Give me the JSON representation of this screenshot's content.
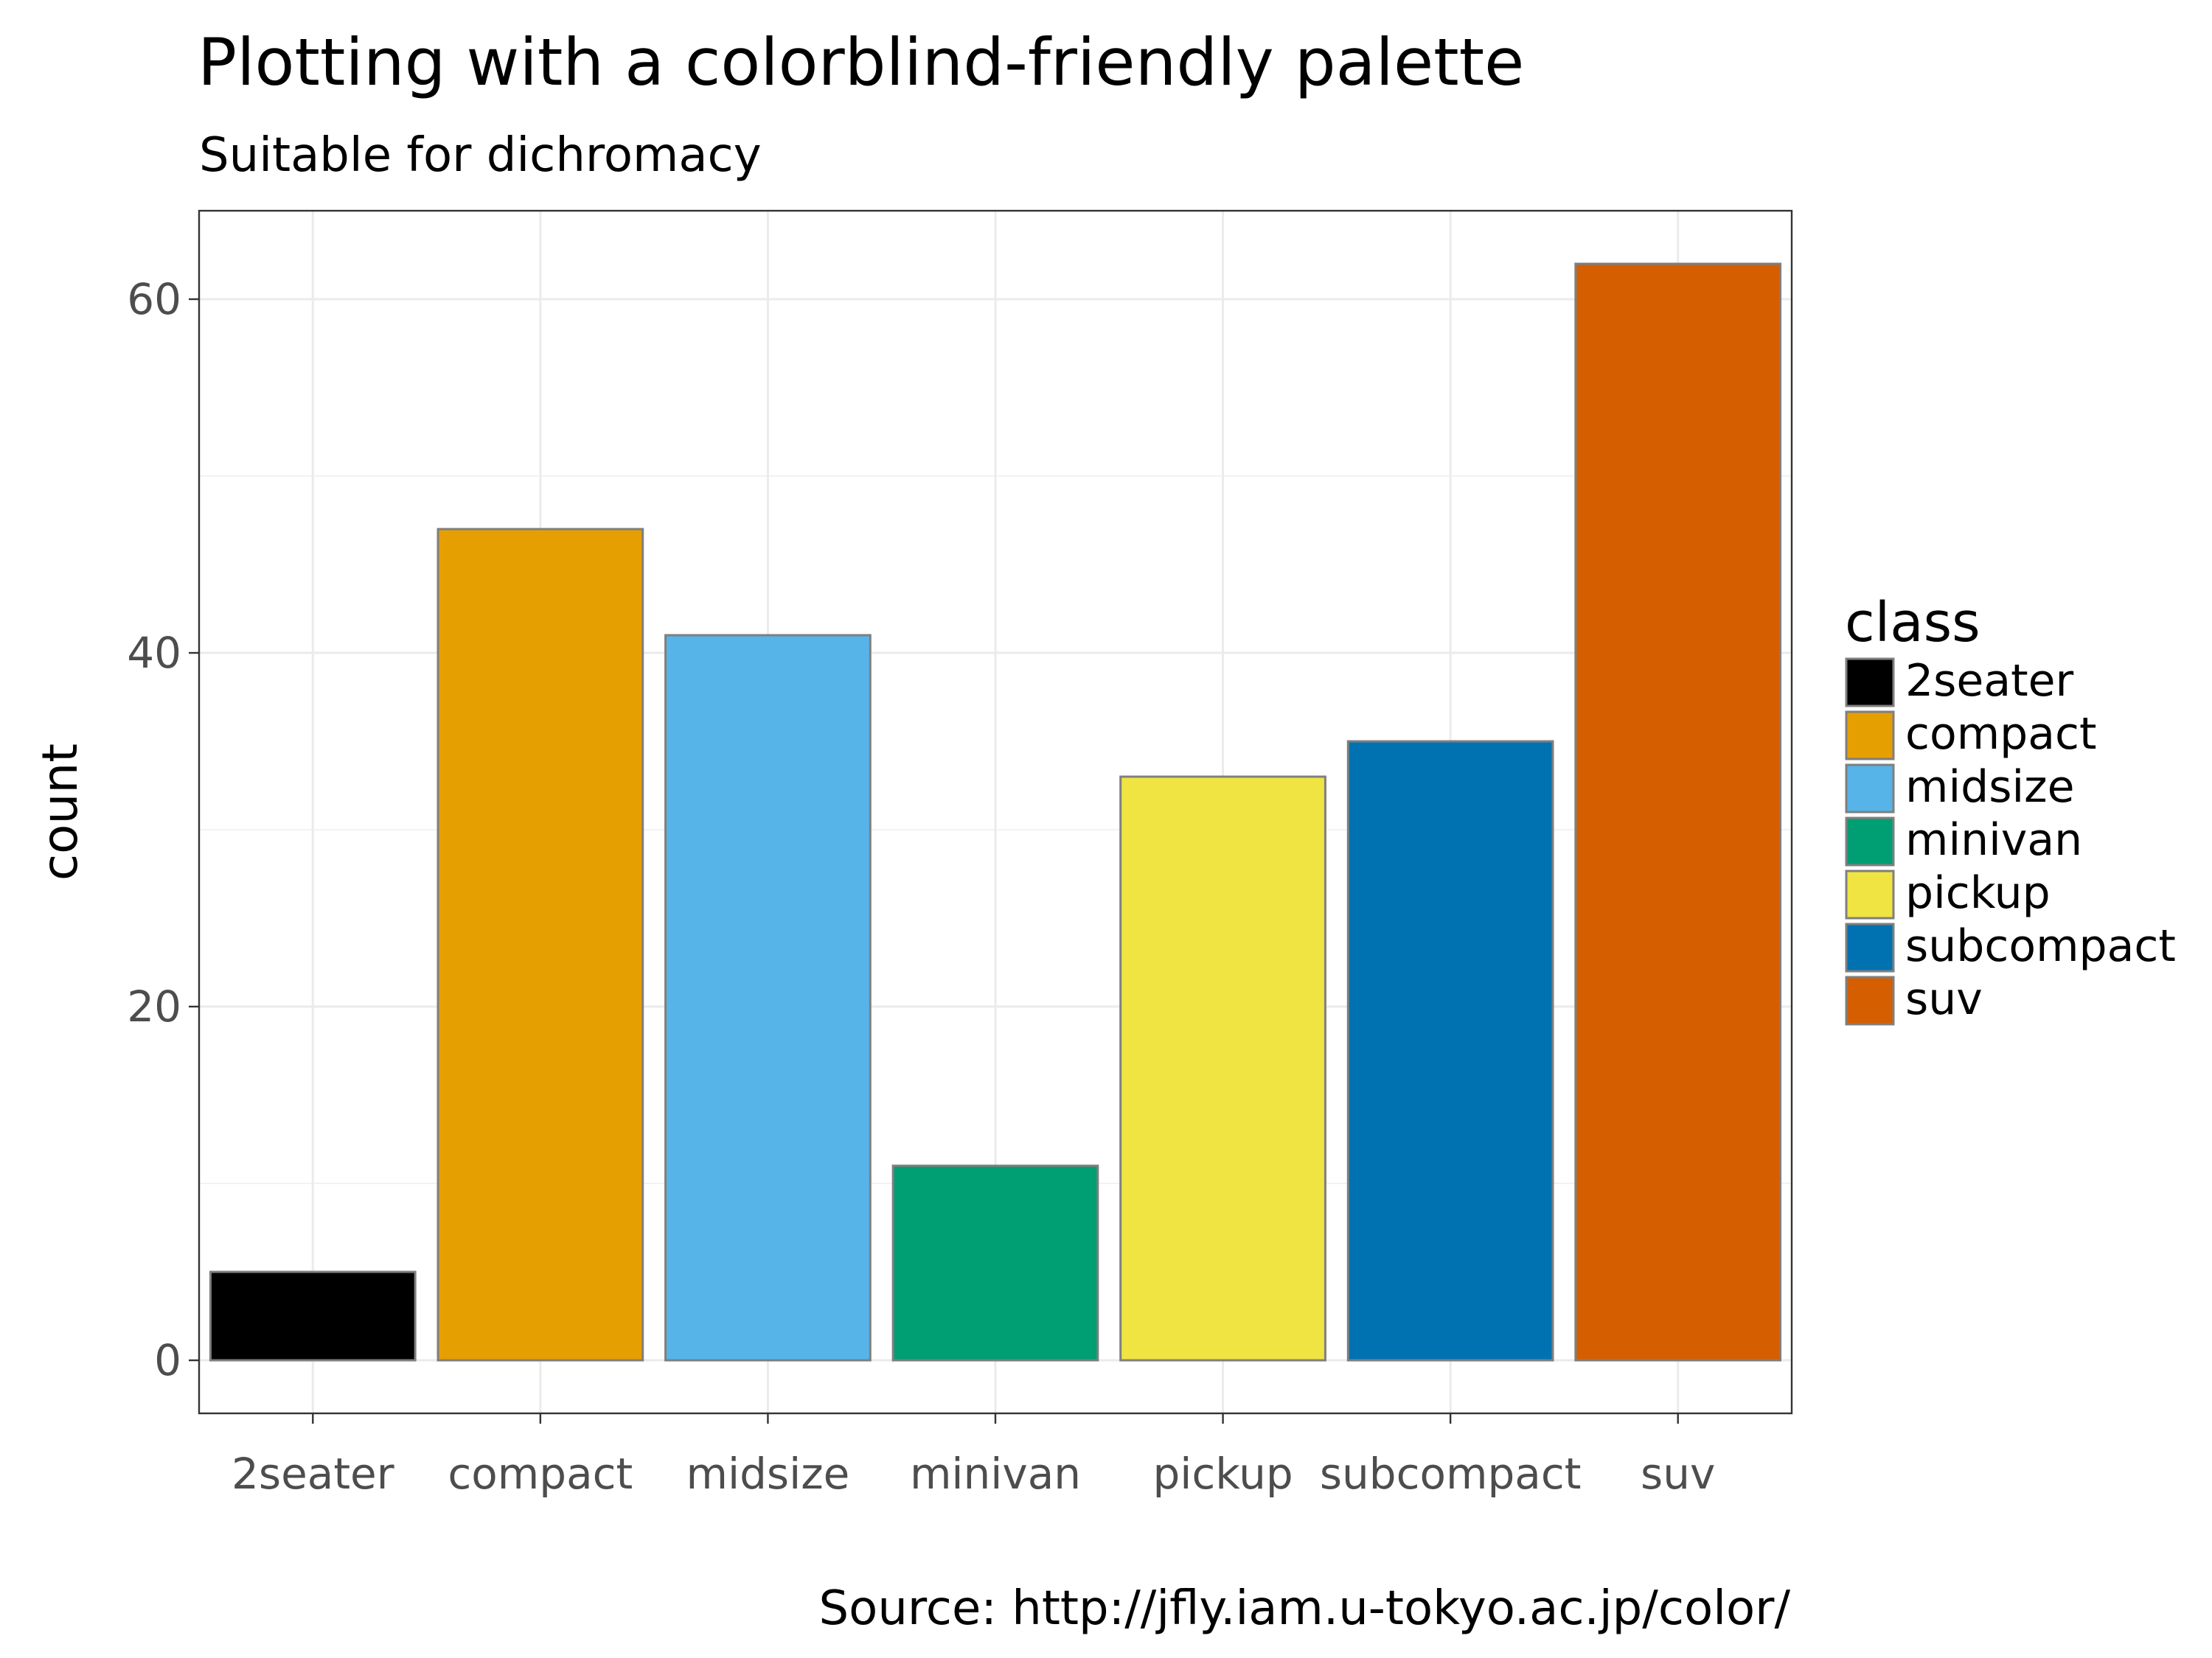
{
  "chart_data": {
    "type": "bar",
    "title": "Plotting with a colorblind-friendly palette",
    "subtitle": "Suitable for dichromacy",
    "caption": "Source: http://jfly.iam.u-tokyo.ac.jp/color/",
    "xlabel": "",
    "ylabel": "count",
    "categories": [
      "2seater",
      "compact",
      "midsize",
      "minivan",
      "pickup",
      "subcompact",
      "suv"
    ],
    "values": [
      5,
      47,
      41,
      11,
      33,
      35,
      62
    ],
    "colors": [
      "#000000",
      "#E69F00",
      "#56B4E9",
      "#009E73",
      "#F0E442",
      "#0072B2",
      "#D55E00"
    ],
    "ylim": [
      -3,
      65
    ],
    "yticks": [
      0,
      20,
      40,
      60
    ],
    "grid": true,
    "legend": {
      "title": "class",
      "position": "right",
      "items": [
        "2seater",
        "compact",
        "midsize",
        "minivan",
        "pickup",
        "subcompact",
        "suv"
      ]
    }
  }
}
